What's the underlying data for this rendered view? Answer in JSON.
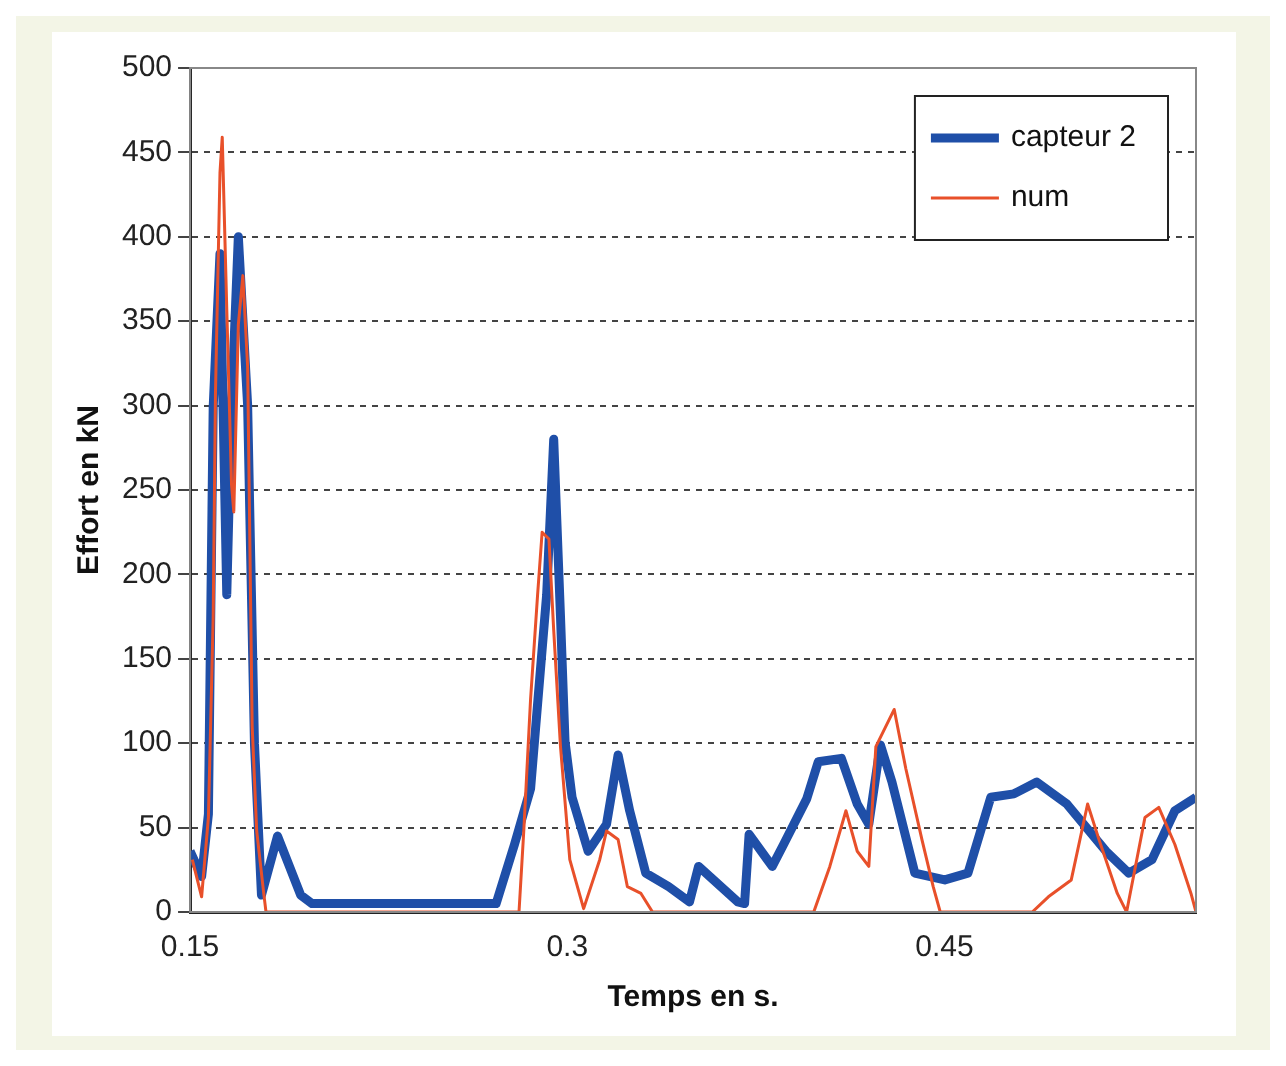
{
  "chart_data": {
    "type": "line",
    "xlabel": "Temps en s.",
    "ylabel": "Effort en kN",
    "xlim": [
      0.15,
      0.55
    ],
    "xticks": [
      0.15,
      0.3,
      0.45
    ],
    "ylim": [
      0,
      500
    ],
    "yticks": [
      0,
      50,
      100,
      150,
      200,
      250,
      300,
      350,
      400,
      450,
      500
    ],
    "grid": "y",
    "legend": "top right",
    "marker": "none",
    "line_style": "solid",
    "series": [
      {
        "name": "capteur 2",
        "color": "#1f4fa8",
        "x": [
          0.15,
          0.1546,
          0.1573,
          0.1592,
          0.1619,
          0.1646,
          0.1665,
          0.1692,
          0.1729,
          0.1756,
          0.1784,
          0.1848,
          0.194,
          0.1985,
          0.2214,
          0.2717,
          0.279,
          0.2854,
          0.2918,
          0.2946,
          0.2973,
          0.2991,
          0.3019,
          0.3083,
          0.3156,
          0.3202,
          0.3248,
          0.3312,
          0.3403,
          0.3486,
          0.3522,
          0.3678,
          0.3705,
          0.3723,
          0.3815,
          0.386,
          0.3952,
          0.3998,
          0.409,
          0.4153,
          0.4199,
          0.4245,
          0.4291,
          0.4382,
          0.4501,
          0.4593,
          0.4684,
          0.4776,
          0.4867,
          0.4986,
          0.5142,
          0.5233,
          0.5325,
          0.5416,
          0.55
        ],
        "values": [
          36,
          21,
          58,
          299,
          390,
          188,
          300,
          400,
          300,
          100,
          10,
          45,
          10,
          5,
          5,
          5,
          40,
          73,
          188,
          280,
          175,
          101,
          68,
          36,
          52,
          93,
          60,
          23,
          15,
          6,
          27,
          6,
          5,
          46,
          27,
          40,
          67,
          89,
          91,
          64,
          52,
          99,
          77,
          23,
          19,
          23,
          68,
          70,
          77,
          64,
          36,
          23,
          31,
          60,
          68
        ]
      },
      {
        "name": "num",
        "color": "#e8502a",
        "x": [
          0.1509,
          0.1546,
          0.1573,
          0.1592,
          0.1601,
          0.1619,
          0.1628,
          0.1646,
          0.1665,
          0.1674,
          0.1692,
          0.171,
          0.1729,
          0.1747,
          0.1765,
          0.1793,
          0.1802,
          0.2808,
          0.2827,
          0.2854,
          0.2882,
          0.29,
          0.2927,
          0.2946,
          0.2973,
          0.301,
          0.3065,
          0.3129,
          0.3156,
          0.3202,
          0.3239,
          0.3293,
          0.3339,
          0.398,
          0.4044,
          0.4108,
          0.4153,
          0.4199,
          0.4227,
          0.43,
          0.4346,
          0.441,
          0.4455,
          0.4483,
          0.4849,
          0.4913,
          0.5004,
          0.5069,
          0.5114,
          0.5187,
          0.5224,
          0.5297,
          0.5352,
          0.5416,
          0.548,
          0.55
        ],
        "values": [
          31,
          9,
          56,
          175,
          307,
          438,
          459,
          357,
          253,
          237,
          348,
          377,
          323,
          110,
          48,
          11,
          0,
          0,
          48,
          126,
          188,
          225,
          221,
          167,
          98,
          31,
          2,
          31,
          48,
          43,
          15,
          11,
          0,
          0,
          27,
          60,
          36,
          27,
          98,
          120,
          85,
          43,
          15,
          0,
          0,
          9,
          19,
          64,
          43,
          11,
          0,
          56,
          62,
          40,
          11,
          0
        ]
      }
    ]
  }
}
